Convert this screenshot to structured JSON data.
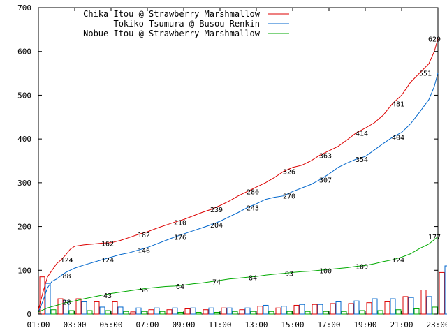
{
  "chart_data": {
    "type": "line",
    "title": "",
    "xlabel": "",
    "ylabel": "",
    "ylim": [
      0,
      700
    ],
    "xlim": [
      "01:00",
      "23:00"
    ],
    "grid": false,
    "legend_position": "top-left",
    "y_ticks": [
      "0",
      "100",
      "200",
      "300",
      "400",
      "500",
      "600",
      "700"
    ],
    "x_ticks": [
      "01:00",
      "03:00",
      "05:00",
      "07:00",
      "09:00",
      "11:00",
      "13:00",
      "15:00",
      "17:00",
      "19:00",
      "21:00",
      "23:00"
    ],
    "series": [
      {
        "name": "Chika Itou @ Strawberry Marshmallow",
        "color": "#dd0000",
        "points": [
          [
            1.0,
            10
          ],
          [
            1.25,
            50
          ],
          [
            1.5,
            85
          ],
          [
            1.75,
            100
          ],
          [
            2.0,
            115
          ],
          [
            2.25,
            124
          ],
          [
            2.5,
            135
          ],
          [
            2.75,
            148
          ],
          [
            3.0,
            155
          ],
          [
            3.5,
            158
          ],
          [
            4.0,
            160
          ],
          [
            4.5,
            162
          ],
          [
            5.0,
            163
          ],
          [
            5.5,
            168
          ],
          [
            6.0,
            175
          ],
          [
            6.5,
            182
          ],
          [
            7.0,
            188
          ],
          [
            7.5,
            196
          ],
          [
            8.0,
            203
          ],
          [
            8.5,
            210
          ],
          [
            9.0,
            216
          ],
          [
            9.5,
            224
          ],
          [
            10.0,
            232
          ],
          [
            10.5,
            239
          ],
          [
            11.0,
            248
          ],
          [
            11.5,
            258
          ],
          [
            12.0,
            270
          ],
          [
            12.5,
            280
          ],
          [
            13.0,
            290
          ],
          [
            13.5,
            300
          ],
          [
            14.0,
            312
          ],
          [
            14.5,
            326
          ],
          [
            15.0,
            335
          ],
          [
            15.5,
            340
          ],
          [
            16.0,
            350
          ],
          [
            16.5,
            363
          ],
          [
            17.0,
            373
          ],
          [
            17.5,
            383
          ],
          [
            18.0,
            398
          ],
          [
            18.5,
            414
          ],
          [
            19.0,
            425
          ],
          [
            19.5,
            437
          ],
          [
            20.0,
            455
          ],
          [
            20.5,
            481
          ],
          [
            21.0,
            500
          ],
          [
            21.5,
            530
          ],
          [
            22.0,
            551
          ],
          [
            22.5,
            572
          ],
          [
            22.8,
            600
          ],
          [
            23.0,
            629
          ]
        ],
        "labels": [
          [
            2.25,
            "124"
          ],
          [
            4.5,
            "162"
          ],
          [
            6.5,
            "182"
          ],
          [
            8.5,
            "210"
          ],
          [
            10.5,
            "239"
          ],
          [
            12.5,
            "280"
          ],
          [
            14.5,
            "326"
          ],
          [
            16.5,
            "363"
          ],
          [
            18.5,
            "414"
          ],
          [
            20.5,
            "481"
          ],
          [
            22.0,
            "551"
          ],
          [
            22.5,
            "629"
          ]
        ]
      },
      {
        "name": "Tokiko Tsumura @ Busou Renkin",
        "color": "#0066cc",
        "points": [
          [
            1.0,
            5
          ],
          [
            1.25,
            30
          ],
          [
            1.5,
            60
          ],
          [
            1.75,
            75
          ],
          [
            2.0,
            80
          ],
          [
            2.25,
            88
          ],
          [
            2.5,
            95
          ],
          [
            3.0,
            105
          ],
          [
            3.5,
            112
          ],
          [
            4.0,
            118
          ],
          [
            4.5,
            124
          ],
          [
            5.0,
            130
          ],
          [
            5.5,
            136
          ],
          [
            6.0,
            140
          ],
          [
            6.5,
            146
          ],
          [
            7.0,
            152
          ],
          [
            7.5,
            160
          ],
          [
            8.0,
            168
          ],
          [
            8.5,
            176
          ],
          [
            9.0,
            183
          ],
          [
            9.5,
            190
          ],
          [
            10.0,
            197
          ],
          [
            10.5,
            204
          ],
          [
            11.0,
            212
          ],
          [
            11.5,
            222
          ],
          [
            12.0,
            232
          ],
          [
            12.5,
            243
          ],
          [
            13.0,
            252
          ],
          [
            13.5,
            262
          ],
          [
            14.0,
            267
          ],
          [
            14.5,
            270
          ],
          [
            15.0,
            280
          ],
          [
            15.5,
            288
          ],
          [
            16.0,
            296
          ],
          [
            16.5,
            307
          ],
          [
            17.0,
            320
          ],
          [
            17.5,
            335
          ],
          [
            18.0,
            345
          ],
          [
            18.5,
            354
          ],
          [
            19.0,
            360
          ],
          [
            19.5,
            375
          ],
          [
            20.0,
            390
          ],
          [
            20.5,
            404
          ],
          [
            21.0,
            415
          ],
          [
            21.5,
            435
          ],
          [
            22.0,
            462
          ],
          [
            22.5,
            490
          ],
          [
            22.8,
            520
          ],
          [
            23.0,
            551
          ]
        ],
        "labels": [
          [
            2.25,
            "88"
          ],
          [
            4.5,
            "124"
          ],
          [
            6.5,
            "146"
          ],
          [
            8.5,
            "176"
          ],
          [
            10.5,
            "204"
          ],
          [
            12.5,
            "243"
          ],
          [
            14.5,
            "270"
          ],
          [
            16.5,
            "307"
          ],
          [
            18.5,
            "354"
          ],
          [
            20.5,
            "404"
          ]
        ]
      },
      {
        "name": "Nobue Itou @ Strawberry Marshmallow",
        "color": "#00aa00",
        "points": [
          [
            1.0,
            5
          ],
          [
            1.5,
            14
          ],
          [
            2.0,
            20
          ],
          [
            2.5,
            26
          ],
          [
            3.0,
            30
          ],
          [
            3.5,
            35
          ],
          [
            4.0,
            39
          ],
          [
            4.5,
            43
          ],
          [
            5.0,
            47
          ],
          [
            5.5,
            50
          ],
          [
            6.0,
            53
          ],
          [
            6.5,
            56
          ],
          [
            7.0,
            59
          ],
          [
            7.5,
            61
          ],
          [
            8.0,
            63
          ],
          [
            8.5,
            64
          ],
          [
            9.0,
            66
          ],
          [
            9.5,
            69
          ],
          [
            10.0,
            71
          ],
          [
            10.5,
            74
          ],
          [
            11.0,
            77
          ],
          [
            11.5,
            80
          ],
          [
            12.0,
            82
          ],
          [
            12.5,
            84
          ],
          [
            13.0,
            86
          ],
          [
            13.5,
            89
          ],
          [
            14.0,
            91
          ],
          [
            14.5,
            93
          ],
          [
            15.0,
            95
          ],
          [
            15.5,
            97
          ],
          [
            16.0,
            98
          ],
          [
            16.5,
            100
          ],
          [
            17.0,
            102
          ],
          [
            17.5,
            104
          ],
          [
            18.0,
            106
          ],
          [
            18.5,
            109
          ],
          [
            19.0,
            111
          ],
          [
            19.5,
            115
          ],
          [
            20.0,
            120
          ],
          [
            20.5,
            124
          ],
          [
            21.0,
            130
          ],
          [
            21.5,
            138
          ],
          [
            22.0,
            150
          ],
          [
            22.5,
            160
          ],
          [
            22.8,
            170
          ],
          [
            23.0,
            177
          ]
        ],
        "labels": [
          [
            2.25,
            "28"
          ],
          [
            4.5,
            "43"
          ],
          [
            6.5,
            "56"
          ],
          [
            8.5,
            "64"
          ],
          [
            10.5,
            "74"
          ],
          [
            12.5,
            "84"
          ],
          [
            14.5,
            "93"
          ],
          [
            16.5,
            "100"
          ],
          [
            18.5,
            "109"
          ],
          [
            20.5,
            "124"
          ],
          [
            22.5,
            "177"
          ]
        ]
      }
    ],
    "bars": [
      {
        "series": 0,
        "values": [
          85,
          35,
          35,
          28,
          28,
          5,
          10,
          10,
          12,
          10,
          14,
          10,
          18,
          14,
          20,
          22,
          24,
          24,
          26,
          28,
          40,
          55,
          95
        ]
      },
      {
        "series": 1,
        "values": [
          70,
          30,
          28,
          16,
          16,
          14,
          14,
          14,
          14,
          14,
          14,
          14,
          20,
          18,
          22,
          22,
          28,
          30,
          35,
          35,
          38,
          40,
          110
        ]
      },
      {
        "series": 2,
        "values": [
          10,
          8,
          8,
          8,
          6,
          6,
          6,
          4,
          4,
          4,
          6,
          6,
          6,
          6,
          6,
          6,
          6,
          8,
          8,
          10,
          12,
          16,
          40
        ]
      }
    ]
  }
}
